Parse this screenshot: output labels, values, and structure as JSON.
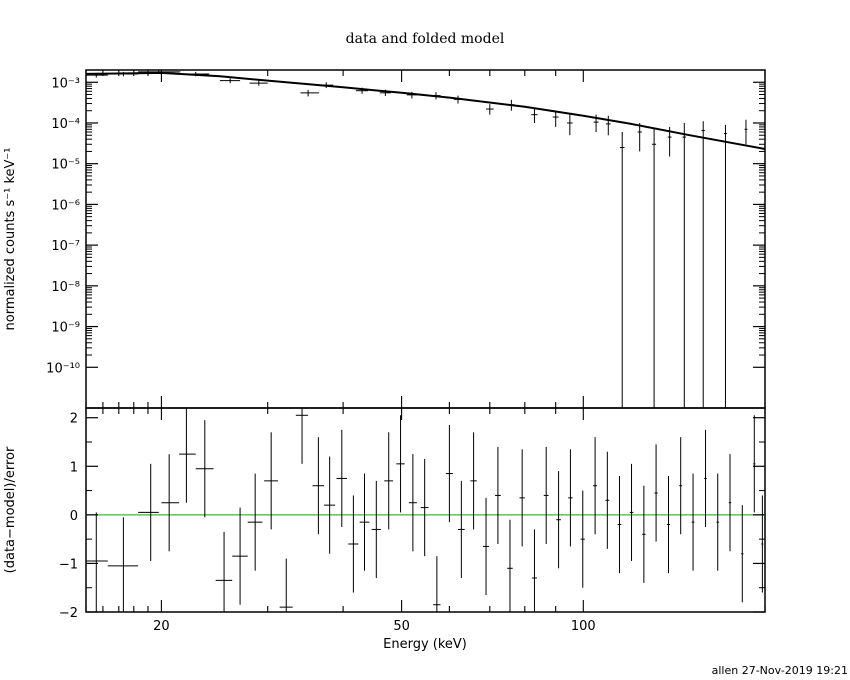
{
  "chart_data": [
    {
      "type": "scatter",
      "title": "data and folded model",
      "ylabel": "normalized counts s⁻¹ keV⁻¹",
      "xlabel": "",
      "xscale": "log",
      "yscale": "log",
      "xlim": [
        15,
        200
      ],
      "ylim": [
        1e-11,
        0.002
      ],
      "y_ticks": [
        {
          "value": 0.001,
          "label": "10⁻³"
        },
        {
          "value": 0.0001,
          "label": "10⁻⁴"
        },
        {
          "value": 1e-05,
          "label": "10⁻⁵"
        },
        {
          "value": 1e-06,
          "label": "10⁻⁶"
        },
        {
          "value": 1e-07,
          "label": "10⁻⁷"
        },
        {
          "value": 1e-08,
          "label": "10⁻⁸"
        },
        {
          "value": 1e-09,
          "label": "10⁻⁹"
        },
        {
          "value": 1e-10,
          "label": "10⁻¹⁰"
        }
      ],
      "model": {
        "x": [
          15,
          20,
          25,
          30,
          40,
          50,
          60,
          80,
          100,
          120,
          150,
          200
        ],
        "y": [
          0.0016,
          0.0017,
          0.0014,
          0.0011,
          0.00075,
          0.00055,
          0.00042,
          0.00025,
          0.00015,
          9.5e-05,
          5e-05,
          2.3e-05
        ]
      },
      "data": [
        {
          "x": 15.6,
          "xlo": 15.0,
          "xhi": 16.3,
          "y": 0.0015,
          "ylo": 0.0013,
          "yhi": 0.0017
        },
        {
          "x": 17.3,
          "xlo": 16.3,
          "xhi": 18.3,
          "y": 0.0016,
          "ylo": 0.0014,
          "yhi": 0.0018
        },
        {
          "x": 19.8,
          "xlo": 18.3,
          "xhi": 21.5,
          "y": 0.0018,
          "ylo": 0.0016,
          "yhi": 0.002
        },
        {
          "x": 22.8,
          "xlo": 21.5,
          "xhi": 24.0,
          "y": 0.0016,
          "ylo": 0.0014,
          "yhi": 0.0018
        },
        {
          "x": 26.0,
          "xlo": 25.0,
          "xhi": 27.0,
          "y": 0.0011,
          "ylo": 0.00095,
          "yhi": 0.00125
        },
        {
          "x": 29.0,
          "xlo": 28.0,
          "xhi": 30.0,
          "y": 0.00095,
          "ylo": 0.00082,
          "yhi": 0.0011
        },
        {
          "x": 35.0,
          "xlo": 34.0,
          "xhi": 36.5,
          "y": 0.00055,
          "ylo": 0.00045,
          "yhi": 0.00065
        },
        {
          "x": 37.5,
          "xlo": 36.5,
          "xhi": 38.5,
          "y": 0.00085,
          "ylo": 0.00072,
          "yhi": 0.001
        },
        {
          "x": 43.0,
          "xlo": 42.0,
          "xhi": 44.0,
          "y": 0.00062,
          "ylo": 0.00052,
          "yhi": 0.00074
        },
        {
          "x": 47.0,
          "xlo": 46.0,
          "xhi": 48.0,
          "y": 0.00055,
          "ylo": 0.00046,
          "yhi": 0.00066
        },
        {
          "x": 52.0,
          "xlo": 51.0,
          "xhi": 53.0,
          "y": 0.00049,
          "ylo": 0.0004,
          "yhi": 0.00058
        },
        {
          "x": 57.0,
          "xlo": 56.0,
          "xhi": 58.0,
          "y": 0.00047,
          "ylo": 0.00038,
          "yhi": 0.00057
        },
        {
          "x": 62.0,
          "xlo": 61.0,
          "xhi": 63.0,
          "y": 0.00038,
          "ylo": 0.0003,
          "yhi": 0.00047
        },
        {
          "x": 70.0,
          "xlo": 69.0,
          "xhi": 71.0,
          "y": 0.00022,
          "ylo": 0.00016,
          "yhi": 0.00029
        },
        {
          "x": 76.0,
          "xlo": 75.0,
          "xhi": 77.0,
          "y": 0.00028,
          "ylo": 0.0002,
          "yhi": 0.00037
        },
        {
          "x": 83.0,
          "xlo": 82.0,
          "xhi": 84.0,
          "y": 0.00016,
          "ylo": 0.0001,
          "yhi": 0.00023
        },
        {
          "x": 90.0,
          "xlo": 89.0,
          "xhi": 91.0,
          "y": 0.00014,
          "ylo": 8e-05,
          "yhi": 0.0002
        },
        {
          "x": 95.0,
          "xlo": 94.0,
          "xhi": 96.0,
          "y": 0.0001,
          "ylo": 5e-05,
          "yhi": 0.00016
        },
        {
          "x": 105.0,
          "xlo": 104.0,
          "xhi": 106.0,
          "y": 0.000105,
          "ylo": 6e-05,
          "yhi": 0.00016
        },
        {
          "x": 110.0,
          "xlo": 109.0,
          "xhi": 111.0,
          "y": 9.5e-05,
          "ylo": 5e-05,
          "yhi": 0.00015
        },
        {
          "x": 116.0,
          "xlo": 115.0,
          "xhi": 117.0,
          "y": 2.5e-05,
          "ylo": 1e-11,
          "yhi": 6e-05
        },
        {
          "x": 124.0,
          "xlo": 123.0,
          "xhi": 125.0,
          "y": 6e-05,
          "ylo": 2e-05,
          "yhi": 0.0001
        },
        {
          "x": 131.0,
          "xlo": 130.0,
          "xhi": 132.0,
          "y": 3e-05,
          "ylo": 1e-11,
          "yhi": 7e-05
        },
        {
          "x": 139.0,
          "xlo": 138.0,
          "xhi": 140.0,
          "y": 4.5e-05,
          "ylo": 1.5e-05,
          "yhi": 8e-05
        },
        {
          "x": 147.0,
          "xlo": 146.0,
          "xhi": 148.0,
          "y": 4.5e-05,
          "ylo": 1e-11,
          "yhi": 0.0001
        },
        {
          "x": 158.0,
          "xlo": 157.0,
          "xhi": 159.0,
          "y": 6.5e-05,
          "ylo": 1e-11,
          "yhi": 0.00011
        },
        {
          "x": 172.0,
          "xlo": 171.0,
          "xhi": 173.0,
          "y": 5.5e-05,
          "ylo": 1e-11,
          "yhi": 9e-05
        },
        {
          "x": 186.0,
          "xlo": 185.0,
          "xhi": 187.0,
          "y": 7e-05,
          "ylo": 3e-05,
          "yhi": 0.00012
        }
      ],
      "colors": {
        "data": "#000000",
        "model": "#000000"
      }
    },
    {
      "type": "scatter",
      "xlabel": "Energy (keV)",
      "ylabel": "(data−model)/error",
      "xscale": "log",
      "xlim": [
        15,
        200
      ],
      "ylim": [
        -2,
        2.2
      ],
      "x_ticks": [
        {
          "value": 20,
          "label": "20"
        },
        {
          "value": 50,
          "label": "50"
        },
        {
          "value": 100,
          "label": "100"
        }
      ],
      "y_ticks": [
        {
          "value": 2,
          "label": "2"
        },
        {
          "value": 1,
          "label": "1"
        },
        {
          "value": 0,
          "label": "0"
        },
        {
          "value": -1,
          "label": "−1"
        },
        {
          "value": -2,
          "label": "−2"
        }
      ],
      "zero_line": {
        "y": 0,
        "color": "#3cb83c"
      },
      "data": [
        {
          "x": 15.6,
          "xlo": 15.0,
          "xhi": 16.3,
          "y": -0.95,
          "ylo": -2.0,
          "yhi": 0.05
        },
        {
          "x": 17.3,
          "xlo": 16.3,
          "xhi": 18.3,
          "y": -1.05,
          "ylo": -2.0,
          "yhi": -0.05
        },
        {
          "x": 19.2,
          "xlo": 18.3,
          "xhi": 19.8,
          "y": 0.05,
          "ylo": -0.95,
          "yhi": 1.05
        },
        {
          "x": 20.6,
          "xlo": 20.0,
          "xhi": 21.4,
          "y": 0.25,
          "ylo": -0.75,
          "yhi": 1.25
        },
        {
          "x": 22.0,
          "xlo": 21.4,
          "xhi": 22.8,
          "y": 1.25,
          "ylo": 0.25,
          "yhi": 2.2
        },
        {
          "x": 23.6,
          "xlo": 22.8,
          "xhi": 24.4,
          "y": 0.95,
          "ylo": -0.05,
          "yhi": 1.95
        },
        {
          "x": 25.4,
          "xlo": 24.6,
          "xhi": 26.2,
          "y": -1.35,
          "ylo": -2.0,
          "yhi": -0.35
        },
        {
          "x": 27.0,
          "xlo": 26.2,
          "xhi": 27.8,
          "y": -0.85,
          "ylo": -1.85,
          "yhi": 0.15
        },
        {
          "x": 28.6,
          "xlo": 27.8,
          "xhi": 29.4,
          "y": -0.15,
          "ylo": -1.15,
          "yhi": 0.85
        },
        {
          "x": 30.4,
          "xlo": 29.6,
          "xhi": 31.2,
          "y": 0.7,
          "ylo": -0.3,
          "yhi": 1.7
        },
        {
          "x": 32.2,
          "xlo": 31.4,
          "xhi": 33.0,
          "y": -1.9,
          "ylo": -2.0,
          "yhi": -0.9
        },
        {
          "x": 34.2,
          "xlo": 33.4,
          "xhi": 35.0,
          "y": 2.05,
          "ylo": 1.05,
          "yhi": 2.2
        },
        {
          "x": 36.4,
          "xlo": 35.6,
          "xhi": 37.2,
          "y": 0.6,
          "ylo": -0.4,
          "yhi": 1.6
        },
        {
          "x": 38.0,
          "xlo": 37.2,
          "xhi": 38.8,
          "y": 0.2,
          "ylo": -0.8,
          "yhi": 1.2
        },
        {
          "x": 39.8,
          "xlo": 39.0,
          "xhi": 40.6,
          "y": 0.75,
          "ylo": -0.25,
          "yhi": 1.75
        },
        {
          "x": 41.6,
          "xlo": 40.8,
          "xhi": 42.4,
          "y": -0.6,
          "ylo": -1.6,
          "yhi": 0.4
        },
        {
          "x": 43.4,
          "xlo": 42.6,
          "xhi": 44.2,
          "y": -0.15,
          "ylo": -1.15,
          "yhi": 0.85
        },
        {
          "x": 45.4,
          "xlo": 44.6,
          "xhi": 46.2,
          "y": -0.3,
          "ylo": -1.3,
          "yhi": 0.7
        },
        {
          "x": 47.6,
          "xlo": 46.8,
          "xhi": 48.4,
          "y": 0.7,
          "ylo": -0.3,
          "yhi": 1.7
        },
        {
          "x": 49.8,
          "xlo": 49.0,
          "xhi": 50.6,
          "y": 1.05,
          "ylo": 0.05,
          "yhi": 2.05
        },
        {
          "x": 52.2,
          "xlo": 51.4,
          "xhi": 53.0,
          "y": 0.25,
          "ylo": -0.75,
          "yhi": 1.25
        },
        {
          "x": 54.6,
          "xlo": 53.8,
          "xhi": 55.4,
          "y": 0.15,
          "ylo": -0.85,
          "yhi": 1.15
        },
        {
          "x": 57.2,
          "xlo": 56.4,
          "xhi": 58.0,
          "y": -1.85,
          "ylo": -2.0,
          "yhi": -0.85
        },
        {
          "x": 60.0,
          "xlo": 59.2,
          "xhi": 60.8,
          "y": 0.85,
          "ylo": -0.15,
          "yhi": 1.85
        },
        {
          "x": 62.8,
          "xlo": 62.0,
          "xhi": 63.6,
          "y": -0.3,
          "ylo": -1.3,
          "yhi": 0.7
        },
        {
          "x": 65.8,
          "xlo": 65.0,
          "xhi": 66.6,
          "y": 0.7,
          "ylo": -0.3,
          "yhi": 1.7
        },
        {
          "x": 69.0,
          "xlo": 68.2,
          "xhi": 69.8,
          "y": -0.65,
          "ylo": -1.65,
          "yhi": 0.35
        },
        {
          "x": 72.2,
          "xlo": 71.4,
          "xhi": 73.0,
          "y": 0.4,
          "ylo": -0.6,
          "yhi": 1.4
        },
        {
          "x": 75.6,
          "xlo": 74.8,
          "xhi": 76.4,
          "y": -1.1,
          "ylo": -2.0,
          "yhi": -0.1
        },
        {
          "x": 79.2,
          "xlo": 78.4,
          "xhi": 80.0,
          "y": 0.35,
          "ylo": -0.65,
          "yhi": 1.35
        },
        {
          "x": 83.0,
          "xlo": 82.2,
          "xhi": 83.8,
          "y": -1.3,
          "ylo": -2.0,
          "yhi": -0.3
        },
        {
          "x": 86.8,
          "xlo": 86.0,
          "xhi": 87.6,
          "y": 0.4,
          "ylo": -0.6,
          "yhi": 1.4
        },
        {
          "x": 91.0,
          "xlo": 90.2,
          "xhi": 91.8,
          "y": -0.1,
          "ylo": -1.1,
          "yhi": 0.9
        },
        {
          "x": 95.2,
          "xlo": 94.4,
          "xhi": 96.0,
          "y": 0.35,
          "ylo": -0.65,
          "yhi": 1.35
        },
        {
          "x": 99.8,
          "xlo": 99.0,
          "xhi": 100.6,
          "y": -0.5,
          "ylo": -1.5,
          "yhi": 0.5
        },
        {
          "x": 104.6,
          "xlo": 103.8,
          "xhi": 105.4,
          "y": 0.6,
          "ylo": -0.4,
          "yhi": 1.6
        },
        {
          "x": 109.6,
          "xlo": 108.8,
          "xhi": 110.4,
          "y": 0.3,
          "ylo": -0.7,
          "yhi": 1.3
        },
        {
          "x": 114.8,
          "xlo": 114.0,
          "xhi": 115.6,
          "y": -0.2,
          "ylo": -1.2,
          "yhi": 0.8
        },
        {
          "x": 120.2,
          "xlo": 119.4,
          "xhi": 121.0,
          "y": 0.05,
          "ylo": -0.95,
          "yhi": 1.05
        },
        {
          "x": 126.0,
          "xlo": 125.2,
          "xhi": 126.8,
          "y": -0.4,
          "ylo": -1.4,
          "yhi": 0.6
        },
        {
          "x": 132.0,
          "xlo": 131.2,
          "xhi": 132.8,
          "y": 0.45,
          "ylo": -0.55,
          "yhi": 1.45
        },
        {
          "x": 138.4,
          "xlo": 137.6,
          "xhi": 139.2,
          "y": -0.2,
          "ylo": -1.2,
          "yhi": 0.8
        },
        {
          "x": 145.0,
          "xlo": 144.2,
          "xhi": 145.8,
          "y": 0.6,
          "ylo": -0.4,
          "yhi": 1.6
        },
        {
          "x": 152.0,
          "xlo": 151.2,
          "xhi": 152.8,
          "y": -0.15,
          "ylo": -1.15,
          "yhi": 0.85
        },
        {
          "x": 159.4,
          "xlo": 158.6,
          "xhi": 160.2,
          "y": 0.75,
          "ylo": -0.25,
          "yhi": 1.75
        },
        {
          "x": 167.0,
          "xlo": 166.2,
          "xhi": 167.8,
          "y": -0.15,
          "ylo": -1.15,
          "yhi": 0.85
        },
        {
          "x": 175.0,
          "xlo": 174.2,
          "xhi": 175.8,
          "y": 0.25,
          "ylo": -0.75,
          "yhi": 1.25
        },
        {
          "x": 183.4,
          "xlo": 182.6,
          "xhi": 184.2,
          "y": -0.8,
          "ylo": -1.8,
          "yhi": 0.2
        },
        {
          "x": 192.0,
          "xlo": 191.2,
          "xhi": 192.8,
          "y": 1.05,
          "ylo": 0.05,
          "yhi": 2.05
        },
        {
          "x": 198.0,
          "xlo": 197.2,
          "xhi": 198.8,
          "y": -0.6,
          "ylo": -1.6,
          "yhi": 0.4
        }
      ]
    }
  ],
  "footer": {
    "stamp": "allen 27-Nov-2019 19:21"
  }
}
